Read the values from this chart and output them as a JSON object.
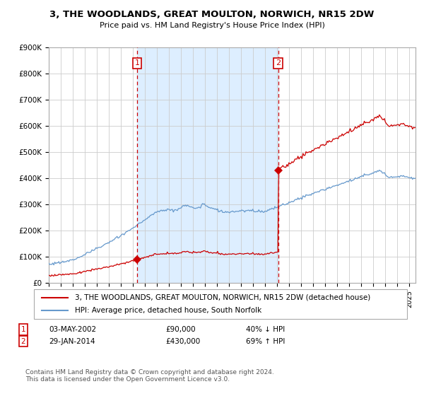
{
  "title": "3, THE WOODLANDS, GREAT MOULTON, NORWICH, NR15 2DW",
  "subtitle": "Price paid vs. HM Land Registry's House Price Index (HPI)",
  "legend_line1": "3, THE WOODLANDS, GREAT MOULTON, NORWICH, NR15 2DW (detached house)",
  "legend_line2": "HPI: Average price, detached house, South Norfolk",
  "sale1_date": "03-MAY-2002",
  "sale1_price": 90000,
  "sale1_label": "40% ↓ HPI",
  "sale2_date": "29-JAN-2014",
  "sale2_price": 430000,
  "sale2_label": "69% ↑ HPI",
  "footnote": "Contains HM Land Registry data © Crown copyright and database right 2024.\nThis data is licensed under the Open Government Licence v3.0.",
  "red_color": "#cc0000",
  "blue_color": "#6699cc",
  "bg_shade_color": "#ddeeff",
  "ylim": [
    0,
    900000
  ],
  "yticks": [
    0,
    100000,
    200000,
    300000,
    400000,
    500000,
    600000,
    700000,
    800000,
    900000
  ],
  "sale1_year": 2002.34,
  "sale2_year": 2014.08,
  "xlim_left": 1995,
  "xlim_right": 2025.5
}
